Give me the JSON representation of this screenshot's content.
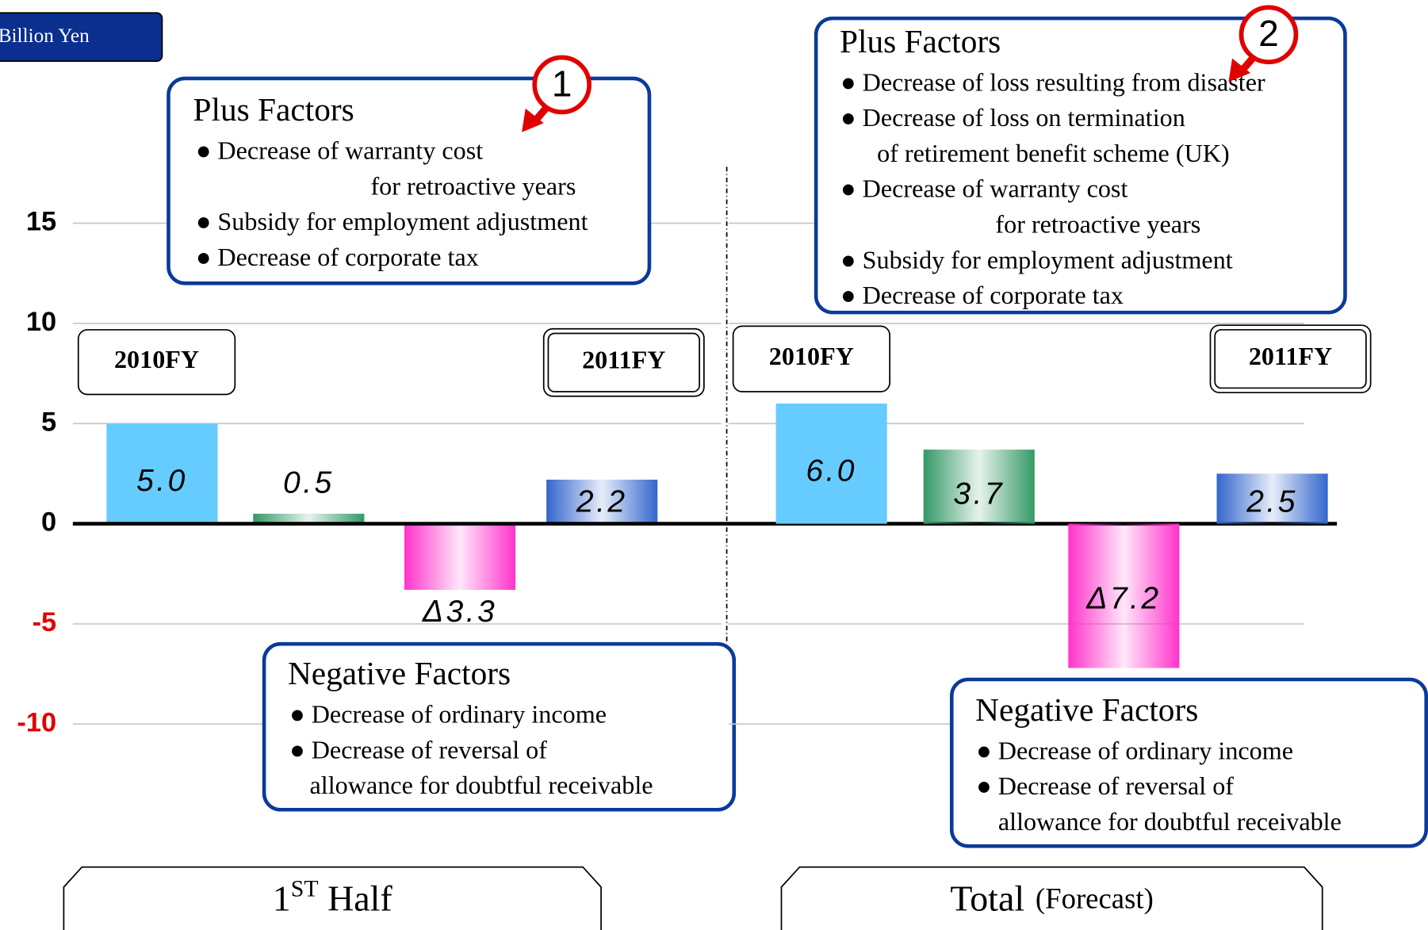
{
  "unit": "Billion Yen",
  "chart_data": [
    {
      "type": "bar",
      "title": "1",
      "title_superscript": "ST",
      "title_suffix": "Half",
      "categories": [
        "2010FY",
        null,
        null,
        "2011FY"
      ],
      "values": [
        5.0,
        0.5,
        -3.3,
        2.2
      ],
      "value_labels": [
        "5.0",
        "0.5",
        "Δ3.3",
        "2.2"
      ],
      "colors": [
        "#66ccff",
        "#339966",
        "#ff33cc",
        "#3366cc"
      ],
      "gradient": [
        false,
        true,
        true,
        true
      ],
      "ylim": [
        -10,
        15
      ],
      "yticks": [
        -10,
        -5,
        0,
        5,
        10,
        15
      ],
      "negative_tick_color": "#e00000",
      "grid": true,
      "annotations": [
        {
          "title": "Plus Factors",
          "marker": "1",
          "lines": [
            "● Decrease of warranty cost",
            "for retroactive years",
            "● Subsidy for employment adjustment",
            "● Decrease of corporate tax"
          ]
        },
        {
          "title": "Negative Factors",
          "lines": [
            "● Decrease of ordinary income",
            "● Decrease of reversal of",
            "allowance for doubtful receivable"
          ]
        }
      ]
    },
    {
      "type": "bar",
      "title": "Total",
      "subtitle": "(Forecast)",
      "categories": [
        "2010FY",
        null,
        null,
        "2011FY"
      ],
      "values": [
        6.0,
        3.7,
        -7.2,
        2.5
      ],
      "value_labels": [
        "6.0",
        "3.7",
        "Δ7.2",
        "2.5"
      ],
      "colors": [
        "#66ccff",
        "#339966",
        "#ff33cc",
        "#3366cc"
      ],
      "gradient": [
        false,
        true,
        true,
        true
      ],
      "ylim": [
        -10,
        15
      ],
      "yticks": [
        -10,
        -5,
        0,
        5,
        10,
        15
      ],
      "grid": true,
      "annotations": [
        {
          "title": "Plus Factors",
          "marker": "2",
          "lines": [
            "● Decrease of loss resulting from disaster",
            "● Decrease of loss on termination",
            "of retirement benefit scheme (UK)",
            "● Decrease of warranty cost",
            "for retroactive years",
            "● Subsidy for employment adjustment",
            "● Decrease of corporate tax"
          ]
        },
        {
          "title": "Negative Factors",
          "lines": [
            "● Decrease of ordinary income",
            "● Decrease of reversal of",
            "allowance for doubtful receivable"
          ]
        }
      ]
    }
  ]
}
